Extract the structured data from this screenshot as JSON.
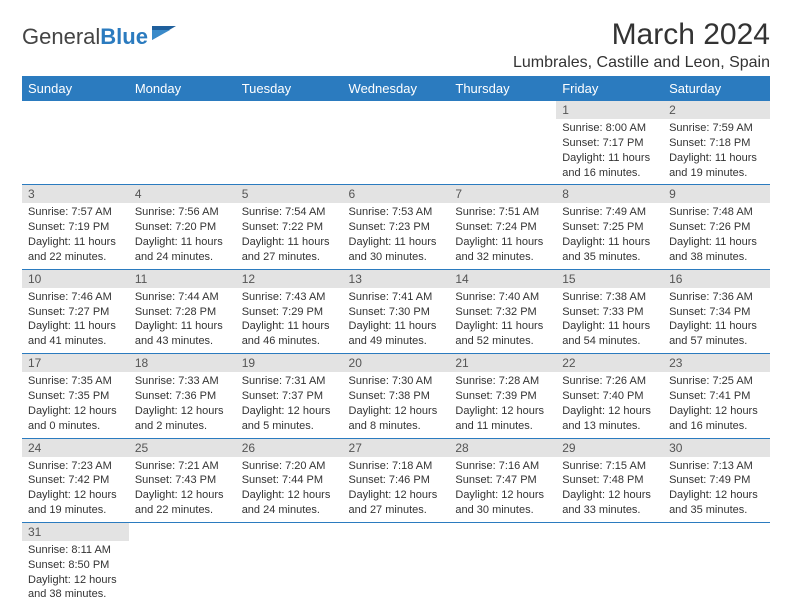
{
  "logo": {
    "text1": "General",
    "text2": "Blue"
  },
  "title": "March 2024",
  "location": "Lumbrales, Castille and Leon, Spain",
  "colors": {
    "header_bg": "#2b7bbf",
    "header_text": "#ffffff",
    "daynum_bg": "#e3e3e3",
    "daynum_text": "#555555",
    "body_text": "#333333",
    "row_border": "#2b7bbf",
    "page_bg": "#ffffff"
  },
  "days_of_week": [
    "Sunday",
    "Monday",
    "Tuesday",
    "Wednesday",
    "Thursday",
    "Friday",
    "Saturday"
  ],
  "cells": [
    [
      null,
      null,
      null,
      null,
      null,
      {
        "n": "1",
        "sr": "Sunrise: 8:00 AM",
        "ss": "Sunset: 7:17 PM",
        "d1": "Daylight: 11 hours",
        "d2": "and 16 minutes."
      },
      {
        "n": "2",
        "sr": "Sunrise: 7:59 AM",
        "ss": "Sunset: 7:18 PM",
        "d1": "Daylight: 11 hours",
        "d2": "and 19 minutes."
      }
    ],
    [
      {
        "n": "3",
        "sr": "Sunrise: 7:57 AM",
        "ss": "Sunset: 7:19 PM",
        "d1": "Daylight: 11 hours",
        "d2": "and 22 minutes."
      },
      {
        "n": "4",
        "sr": "Sunrise: 7:56 AM",
        "ss": "Sunset: 7:20 PM",
        "d1": "Daylight: 11 hours",
        "d2": "and 24 minutes."
      },
      {
        "n": "5",
        "sr": "Sunrise: 7:54 AM",
        "ss": "Sunset: 7:22 PM",
        "d1": "Daylight: 11 hours",
        "d2": "and 27 minutes."
      },
      {
        "n": "6",
        "sr": "Sunrise: 7:53 AM",
        "ss": "Sunset: 7:23 PM",
        "d1": "Daylight: 11 hours",
        "d2": "and 30 minutes."
      },
      {
        "n": "7",
        "sr": "Sunrise: 7:51 AM",
        "ss": "Sunset: 7:24 PM",
        "d1": "Daylight: 11 hours",
        "d2": "and 32 minutes."
      },
      {
        "n": "8",
        "sr": "Sunrise: 7:49 AM",
        "ss": "Sunset: 7:25 PM",
        "d1": "Daylight: 11 hours",
        "d2": "and 35 minutes."
      },
      {
        "n": "9",
        "sr": "Sunrise: 7:48 AM",
        "ss": "Sunset: 7:26 PM",
        "d1": "Daylight: 11 hours",
        "d2": "and 38 minutes."
      }
    ],
    [
      {
        "n": "10",
        "sr": "Sunrise: 7:46 AM",
        "ss": "Sunset: 7:27 PM",
        "d1": "Daylight: 11 hours",
        "d2": "and 41 minutes."
      },
      {
        "n": "11",
        "sr": "Sunrise: 7:44 AM",
        "ss": "Sunset: 7:28 PM",
        "d1": "Daylight: 11 hours",
        "d2": "and 43 minutes."
      },
      {
        "n": "12",
        "sr": "Sunrise: 7:43 AM",
        "ss": "Sunset: 7:29 PM",
        "d1": "Daylight: 11 hours",
        "d2": "and 46 minutes."
      },
      {
        "n": "13",
        "sr": "Sunrise: 7:41 AM",
        "ss": "Sunset: 7:30 PM",
        "d1": "Daylight: 11 hours",
        "d2": "and 49 minutes."
      },
      {
        "n": "14",
        "sr": "Sunrise: 7:40 AM",
        "ss": "Sunset: 7:32 PM",
        "d1": "Daylight: 11 hours",
        "d2": "and 52 minutes."
      },
      {
        "n": "15",
        "sr": "Sunrise: 7:38 AM",
        "ss": "Sunset: 7:33 PM",
        "d1": "Daylight: 11 hours",
        "d2": "and 54 minutes."
      },
      {
        "n": "16",
        "sr": "Sunrise: 7:36 AM",
        "ss": "Sunset: 7:34 PM",
        "d1": "Daylight: 11 hours",
        "d2": "and 57 minutes."
      }
    ],
    [
      {
        "n": "17",
        "sr": "Sunrise: 7:35 AM",
        "ss": "Sunset: 7:35 PM",
        "d1": "Daylight: 12 hours",
        "d2": "and 0 minutes."
      },
      {
        "n": "18",
        "sr": "Sunrise: 7:33 AM",
        "ss": "Sunset: 7:36 PM",
        "d1": "Daylight: 12 hours",
        "d2": "and 2 minutes."
      },
      {
        "n": "19",
        "sr": "Sunrise: 7:31 AM",
        "ss": "Sunset: 7:37 PM",
        "d1": "Daylight: 12 hours",
        "d2": "and 5 minutes."
      },
      {
        "n": "20",
        "sr": "Sunrise: 7:30 AM",
        "ss": "Sunset: 7:38 PM",
        "d1": "Daylight: 12 hours",
        "d2": "and 8 minutes."
      },
      {
        "n": "21",
        "sr": "Sunrise: 7:28 AM",
        "ss": "Sunset: 7:39 PM",
        "d1": "Daylight: 12 hours",
        "d2": "and 11 minutes."
      },
      {
        "n": "22",
        "sr": "Sunrise: 7:26 AM",
        "ss": "Sunset: 7:40 PM",
        "d1": "Daylight: 12 hours",
        "d2": "and 13 minutes."
      },
      {
        "n": "23",
        "sr": "Sunrise: 7:25 AM",
        "ss": "Sunset: 7:41 PM",
        "d1": "Daylight: 12 hours",
        "d2": "and 16 minutes."
      }
    ],
    [
      {
        "n": "24",
        "sr": "Sunrise: 7:23 AM",
        "ss": "Sunset: 7:42 PM",
        "d1": "Daylight: 12 hours",
        "d2": "and 19 minutes."
      },
      {
        "n": "25",
        "sr": "Sunrise: 7:21 AM",
        "ss": "Sunset: 7:43 PM",
        "d1": "Daylight: 12 hours",
        "d2": "and 22 minutes."
      },
      {
        "n": "26",
        "sr": "Sunrise: 7:20 AM",
        "ss": "Sunset: 7:44 PM",
        "d1": "Daylight: 12 hours",
        "d2": "and 24 minutes."
      },
      {
        "n": "27",
        "sr": "Sunrise: 7:18 AM",
        "ss": "Sunset: 7:46 PM",
        "d1": "Daylight: 12 hours",
        "d2": "and 27 minutes."
      },
      {
        "n": "28",
        "sr": "Sunrise: 7:16 AM",
        "ss": "Sunset: 7:47 PM",
        "d1": "Daylight: 12 hours",
        "d2": "and 30 minutes."
      },
      {
        "n": "29",
        "sr": "Sunrise: 7:15 AM",
        "ss": "Sunset: 7:48 PM",
        "d1": "Daylight: 12 hours",
        "d2": "and 33 minutes."
      },
      {
        "n": "30",
        "sr": "Sunrise: 7:13 AM",
        "ss": "Sunset: 7:49 PM",
        "d1": "Daylight: 12 hours",
        "d2": "and 35 minutes."
      }
    ],
    [
      {
        "n": "31",
        "sr": "Sunrise: 8:11 AM",
        "ss": "Sunset: 8:50 PM",
        "d1": "Daylight: 12 hours",
        "d2": "and 38 minutes."
      },
      null,
      null,
      null,
      null,
      null,
      null
    ]
  ]
}
